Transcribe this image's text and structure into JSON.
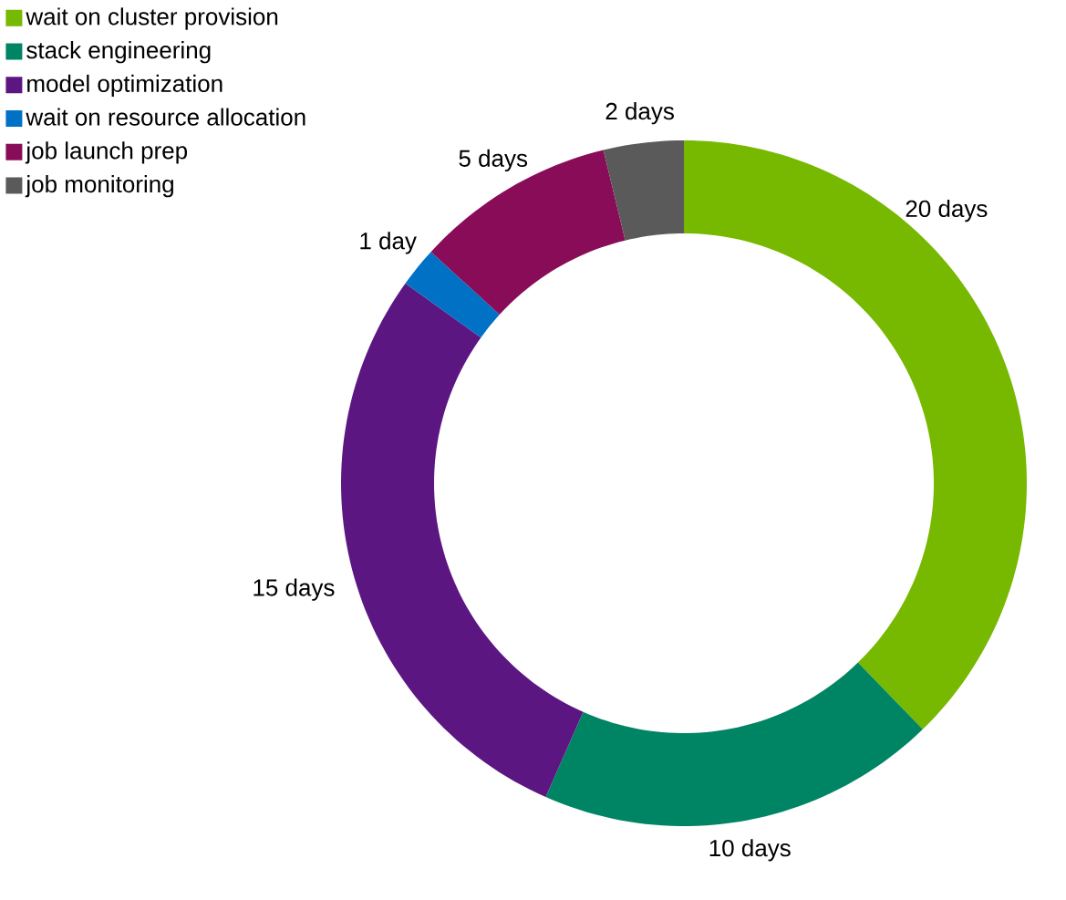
{
  "chart_data": {
    "type": "donut",
    "categories": [
      "wait on cluster provision",
      "stack engineering",
      "model optimization",
      "wait on resource allocation",
      "job launch prep",
      "job monitoring"
    ],
    "values": [
      20,
      10,
      15,
      1,
      5,
      2
    ],
    "colors": [
      "#76b900",
      "#008564",
      "#5c1682",
      "#0071c5",
      "#890c58",
      "#5a5a5a"
    ],
    "value_labels": [
      "20 days",
      "10 days",
      "15 days",
      "1 day",
      "5 days",
      "2 days"
    ],
    "legend": "top left"
  }
}
